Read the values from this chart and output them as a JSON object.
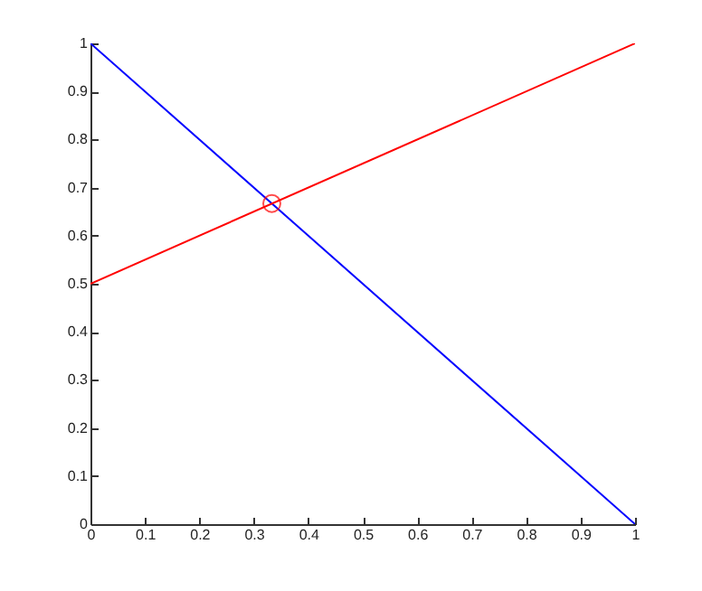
{
  "chart_data": {
    "type": "line",
    "x": [
      0,
      1
    ],
    "series": [
      {
        "color": "#0000ff",
        "values": [
          1,
          0
        ]
      },
      {
        "color": "#ff0000",
        "values": [
          0.5,
          1
        ]
      },
      {
        "type": "scatter",
        "color": "#ff0000",
        "marker": "circle",
        "x": [
          0.333
        ],
        "values": [
          0.667
        ]
      }
    ],
    "xlim": [
      0,
      1
    ],
    "ylim": [
      0,
      1
    ],
    "xticks": [
      0,
      0.1,
      0.2,
      0.3,
      0.4,
      0.5,
      0.6,
      0.7,
      0.8,
      0.9,
      1
    ],
    "yticks": [
      0,
      0.1,
      0.2,
      0.3,
      0.4,
      0.5,
      0.6,
      0.7,
      0.8,
      0.9,
      1
    ],
    "grid": false
  }
}
